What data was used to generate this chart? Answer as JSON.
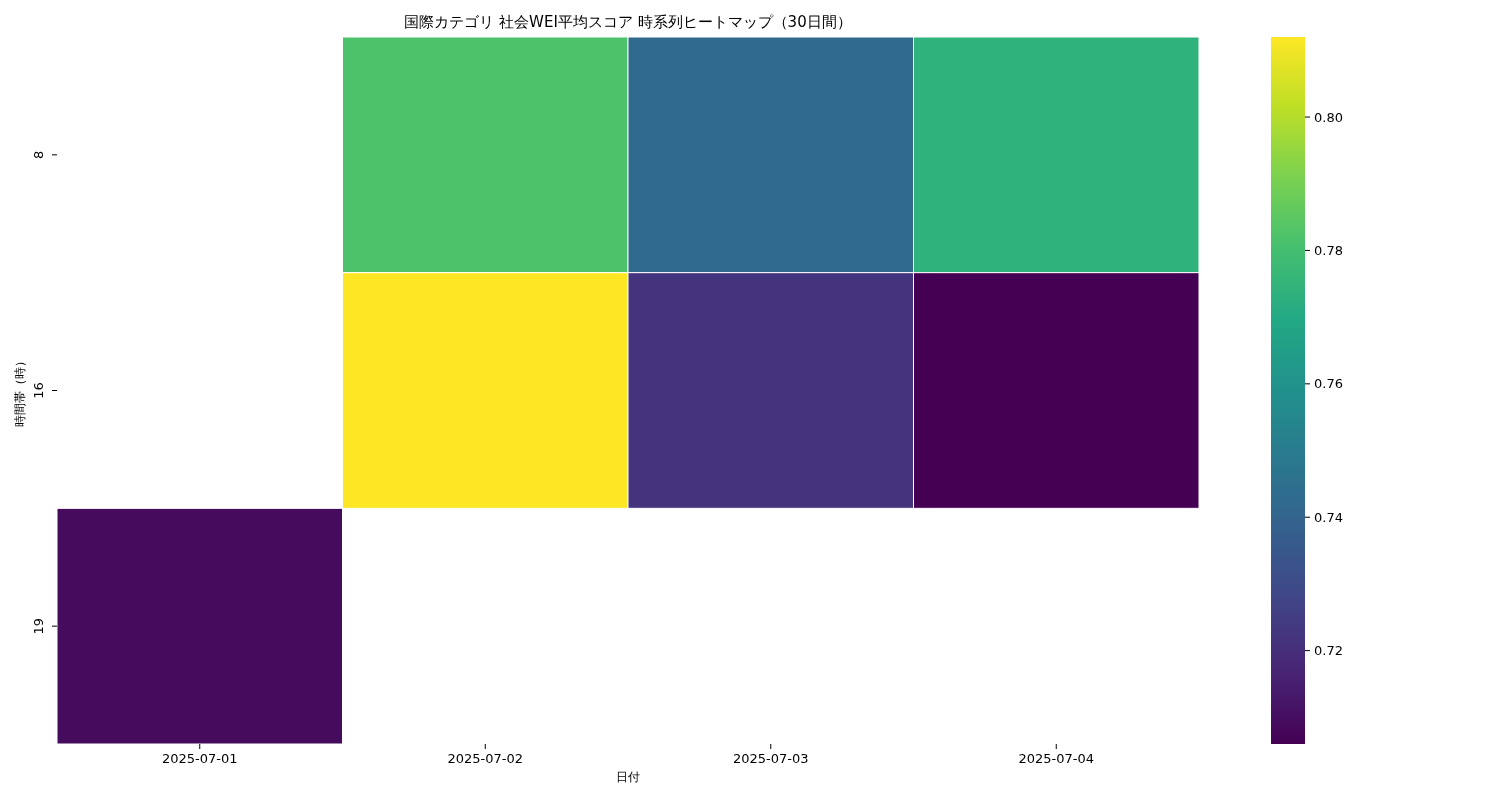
{
  "chart_data": {
    "type": "heatmap",
    "title": "国際カテゴリ 社会WEI平均スコア 時系列ヒートマップ（30日間）",
    "xlabel": "日付",
    "ylabel": "時間帯（時）",
    "categories": [
      "2025-07-01",
      "2025-07-02",
      "2025-07-03",
      "2025-07-04"
    ],
    "y_categories": [
      "8",
      "16",
      "19"
    ],
    "cells": [
      [
        null,
        0.782,
        0.743,
        0.774
      ],
      [
        null,
        0.812,
        0.722,
        0.706
      ],
      [
        0.709,
        null,
        null,
        null
      ]
    ],
    "clim": [
      0.706,
      0.812
    ],
    "cticks": [
      0.72,
      0.74,
      0.76,
      0.78,
      {
        "value": 0.8,
        "label": "0.80"
      }
    ]
  }
}
